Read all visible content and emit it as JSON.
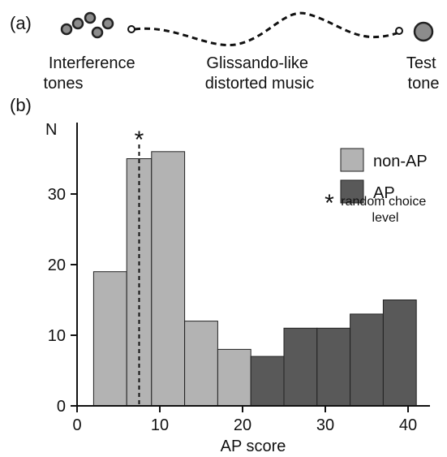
{
  "panel_a": {
    "label": "(a)",
    "stage_labels": [
      {
        "line1": "Interference",
        "line2": "tones"
      },
      {
        "line1": "Glissando-like",
        "line2": "distorted music"
      },
      {
        "line1": "Test",
        "line2": "tone"
      }
    ]
  },
  "panel_b": {
    "label": "(b)",
    "legend": [
      {
        "label": "non-AP",
        "color": "#b3b3b3"
      },
      {
        "label": "AP",
        "color": "#595959"
      },
      {
        "label": "random choice",
        "label2": "level",
        "symbol": "*"
      }
    ]
  },
  "chart_data": {
    "type": "bar",
    "title": "",
    "xlabel": "AP score",
    "ylabel": "N",
    "xlim": [
      0,
      45
    ],
    "ylim": [
      0,
      40
    ],
    "xticks": [
      0,
      10,
      20,
      30,
      40
    ],
    "yticks": [
      0,
      10,
      20,
      30
    ],
    "random_choice_level": 7.5,
    "bin_edges": [
      2,
      6,
      9,
      13,
      17,
      21,
      25,
      29,
      33,
      37,
      41
    ],
    "series": [
      {
        "name": "non-AP",
        "color": "#b3b3b3",
        "values": [
          19,
          35,
          36,
          12,
          8,
          0,
          0,
          0,
          0,
          0
        ]
      },
      {
        "name": "AP",
        "color": "#595959",
        "values": [
          0,
          0,
          0,
          0,
          0,
          7,
          11,
          11,
          13,
          15
        ]
      }
    ]
  }
}
